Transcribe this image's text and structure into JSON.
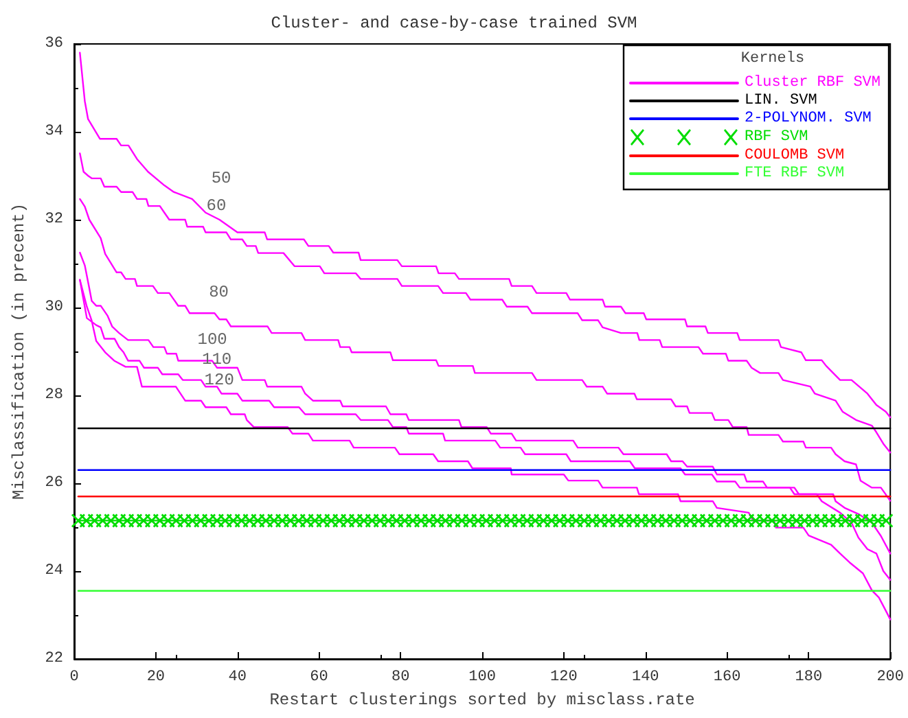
{
  "chart_data": {
    "type": "line",
    "title": "Cluster- and case-by-case trained SVM",
    "xlabel": "Restart clusterings sorted by misclass.rate",
    "ylabel": "Misclassification (in precent)",
    "legend_title": "Kernels",
    "legend": "top right",
    "grid": false,
    "marker": "none",
    "line_style": "solid",
    "xlim": [
      0,
      200
    ],
    "xticks": [
      0,
      20,
      40,
      60,
      80,
      100,
      120,
      140,
      160,
      180,
      200
    ],
    "ylim": [
      22,
      36
    ],
    "yticks": [
      22,
      24,
      26,
      28,
      30,
      32,
      34,
      36
    ],
    "annotations": [
      {
        "text": "50",
        "x": 28.9,
        "y": 32.47
      },
      {
        "text": "60",
        "x": 27.7,
        "y": 31.84
      },
      {
        "text": "80",
        "x": 28.3,
        "y": 29.87
      },
      {
        "text": "100",
        "x": 25.5,
        "y": 28.79
      },
      {
        "text": "110",
        "x": 26.6,
        "y": 28.35
      },
      {
        "text": "120",
        "x": 27.2,
        "y": 27.88
      }
    ],
    "series": [
      {
        "name": "Cluster RBF SVM",
        "color": "#ff00ff",
        "x": [
          1.4,
          2.6,
          3.4,
          6.3,
          10.4,
          11.5,
          13.3,
          15.4,
          18.1,
          22.1,
          24.4,
          28.9,
          32.2,
          35.6,
          40,
          46.7,
          47.3,
          56.3,
          57.4,
          62.4,
          63.5,
          69.7,
          70.2,
          79.2,
          80.3,
          88.7,
          89.3,
          93.3,
          94.3,
          106.6,
          107.2,
          112.2,
          113.3,
          120.6,
          121.5,
          129.5,
          130.1,
          134,
          135.1,
          139.6,
          140.2,
          149.7,
          150.2,
          154.7,
          155.3,
          162.5,
          163.1,
          172.6,
          173.2,
          178.2,
          179.3,
          183.2,
          184.3,
          187.7,
          190.5,
          194.4,
          196.6,
          198.9,
          200
        ],
        "values": [
          35.8,
          34.7,
          34.29,
          33.84,
          33.84,
          33.69,
          33.69,
          33.38,
          33.09,
          32.78,
          32.63,
          32.47,
          32.16,
          32.0,
          31.71,
          31.71,
          31.55,
          31.55,
          31.4,
          31.4,
          31.25,
          31.25,
          31.08,
          31.08,
          30.94,
          30.94,
          30.78,
          30.78,
          30.65,
          30.65,
          30.49,
          30.49,
          30.33,
          30.33,
          30.18,
          30.18,
          30.02,
          30.02,
          29.87,
          29.87,
          29.73,
          29.73,
          29.57,
          29.57,
          29.42,
          29.42,
          29.26,
          29.26,
          29.1,
          28.98,
          28.8,
          28.8,
          28.67,
          28.35,
          28.35,
          28.04,
          27.78,
          27.63,
          27.5
        ]
      },
      {
        "color": "#ff00ff",
        "x": [
          1.4,
          2.3,
          3.4,
          4.3,
          6.5,
          7.4,
          10.4,
          11.5,
          14.3,
          15.4,
          17.7,
          18.2,
          21,
          22.1,
          23.3,
          27.2,
          27.7,
          31.6,
          32.2,
          37.3,
          38.4,
          41.2,
          42.3,
          44.5,
          45.1,
          51.3,
          54,
          60.2,
          61.3,
          69,
          70.2,
          79.2,
          80.3,
          89.2,
          90.4,
          96,
          97.1,
          104.9,
          106,
          111.1,
          112.2,
          123.4,
          124.5,
          128.4,
          129.5,
          134,
          138,
          138.5,
          143.5,
          144.1,
          153,
          154.1,
          159.7,
          160.3,
          164.8,
          166,
          168.1,
          172.6,
          173.7,
          180.4,
          181.5,
          186.6,
          188.3,
          191.6,
          195.5,
          196.6,
          198.3,
          200
        ],
        "values": [
          33.51,
          33.09,
          33.0,
          32.94,
          32.94,
          32.75,
          32.75,
          32.63,
          32.63,
          32.47,
          32.47,
          32.31,
          32.31,
          32.16,
          32.0,
          32.0,
          31.84,
          31.84,
          31.71,
          31.71,
          31.55,
          31.55,
          31.4,
          31.4,
          31.24,
          31.24,
          30.94,
          30.94,
          30.78,
          30.78,
          30.65,
          30.65,
          30.49,
          30.49,
          30.33,
          30.33,
          30.18,
          30.18,
          30.02,
          30.02,
          29.87,
          29.87,
          29.71,
          29.71,
          29.55,
          29.42,
          29.42,
          29.26,
          29.26,
          29.1,
          29.1,
          28.95,
          28.95,
          28.79,
          28.79,
          28.63,
          28.51,
          28.51,
          28.35,
          28.2,
          28.04,
          27.88,
          27.63,
          27.44,
          27.31,
          27.16,
          26.9,
          26.7
        ]
      },
      {
        "color": "#ff00ff",
        "x": [
          1.4,
          2.6,
          3.7,
          6.5,
          7.6,
          10.4,
          11.5,
          12.6,
          14.9,
          15.4,
          19.3,
          20.5,
          23.3,
          25.5,
          27.2,
          28.3,
          34.4,
          35.6,
          37.3,
          38.4,
          47.4,
          48.4,
          55.7,
          56.6,
          64.7,
          65.2,
          67.5,
          68,
          77.5,
          78.1,
          88.7,
          89.3,
          97.7,
          98.2,
          112.2,
          113.3,
          124.5,
          125.6,
          129.5,
          130.6,
          137.3,
          137.9,
          146.3,
          147.4,
          150.2,
          150.8,
          156.3,
          157,
          160.3,
          161.4,
          164.8,
          165.3,
          172.6,
          173.7,
          178.7,
          179.3,
          185.5,
          186.6,
          188.8,
          191.6,
          192.7,
          195.5,
          197.7,
          200
        ],
        "values": [
          32.47,
          32.3,
          32.0,
          31.58,
          31.22,
          30.8,
          30.8,
          30.65,
          30.65,
          30.49,
          30.49,
          30.33,
          30.33,
          30.04,
          30.04,
          29.87,
          29.87,
          29.73,
          29.73,
          29.57,
          29.57,
          29.42,
          29.42,
          29.26,
          29.26,
          29.1,
          29.1,
          28.98,
          28.98,
          28.8,
          28.8,
          28.67,
          28.67,
          28.51,
          28.51,
          28.35,
          28.35,
          28.2,
          28.2,
          28.04,
          28.04,
          27.91,
          27.91,
          27.75,
          27.75,
          27.6,
          27.6,
          27.44,
          27.44,
          27.28,
          27.28,
          27.1,
          27.1,
          26.95,
          26.95,
          26.81,
          26.81,
          26.66,
          26.5,
          26.43,
          26.06,
          25.9,
          25.9,
          25.6
        ]
      },
      {
        "color": "#ff00ff",
        "x": [
          1.4,
          2.6,
          3.7,
          4.3,
          5.4,
          6.5,
          8.2,
          9.3,
          11,
          13.2,
          18.2,
          19.4,
          22.1,
          22.7,
          25,
          25.5,
          33.8,
          35,
          40,
          41.2,
          46.7,
          47.3,
          55.7,
          56.6,
          58.5,
          65.2,
          65.8,
          76.4,
          77.5,
          81.4,
          82,
          94.3,
          94.9,
          101.1,
          102.1,
          107.2,
          108.3,
          122.3,
          123.4,
          133.4,
          134.6,
          145.2,
          146.3,
          149.1,
          150.2,
          156.5,
          157.5,
          164.2,
          164.8,
          168.8,
          169.8,
          176.5,
          177.6,
          186,
          186.6,
          188.8,
          192.2,
          195.5,
          197.7,
          200
        ],
        "values": [
          31.25,
          30.96,
          30.44,
          30.15,
          30.04,
          30.04,
          29.81,
          29.57,
          29.42,
          29.26,
          29.26,
          29.1,
          29.1,
          28.95,
          28.95,
          28.79,
          28.79,
          28.63,
          28.63,
          28.35,
          28.35,
          28.2,
          28.2,
          28.04,
          27.88,
          27.88,
          27.75,
          27.75,
          27.57,
          27.57,
          27.44,
          27.44,
          27.28,
          27.28,
          27.13,
          27.13,
          26.97,
          26.97,
          26.81,
          26.81,
          26.66,
          26.66,
          26.5,
          26.5,
          26.38,
          26.38,
          26.2,
          26.2,
          26.04,
          26.04,
          25.9,
          25.9,
          25.75,
          25.75,
          25.59,
          25.44,
          25.3,
          25.1,
          24.8,
          24.4
        ]
      },
      {
        "color": "#ff00ff",
        "x": [
          1.4,
          3.1,
          5.4,
          6.5,
          7.4,
          9.9,
          11,
          12.1,
          13.2,
          16,
          17.1,
          20.5,
          21.6,
          25.5,
          26.6,
          31.1,
          32.2,
          35,
          36.1,
          40,
          41.2,
          47.8,
          49,
          55.1,
          56.6,
          69,
          70.2,
          76.9,
          78.1,
          81.4,
          82,
          90.4,
          90.9,
          103.2,
          104.4,
          109.4,
          110.5,
          120.6,
          121.7,
          136.2,
          137.4,
          148.6,
          149.7,
          156.3,
          157.5,
          162,
          163.1,
          175.4,
          176.5,
          182,
          183.2,
          187.7,
          190.5,
          192.2,
          194.4,
          196.6,
          198.3,
          200
        ],
        "values": [
          30.63,
          29.76,
          29.6,
          29.55,
          29.29,
          29.29,
          29.1,
          28.98,
          28.79,
          28.79,
          28.63,
          28.63,
          28.48,
          28.48,
          28.35,
          28.35,
          28.2,
          28.2,
          28.04,
          28.04,
          27.88,
          27.88,
          27.73,
          27.73,
          27.57,
          27.57,
          27.44,
          27.44,
          27.28,
          27.28,
          27.13,
          27.13,
          26.97,
          26.97,
          26.81,
          26.81,
          26.66,
          26.66,
          26.5,
          26.5,
          26.34,
          26.34,
          26.2,
          26.2,
          26.04,
          26.04,
          25.9,
          25.9,
          25.75,
          25.75,
          25.59,
          25.33,
          25.1,
          24.76,
          24.5,
          24.4,
          24.0,
          23.8
        ]
      },
      {
        "color": "#ff00ff",
        "x": [
          1.4,
          3.1,
          4.3,
          5.4,
          7.6,
          9.8,
          12.6,
          15.4,
          16.6,
          24.9,
          27.2,
          31.1,
          32.2,
          37.3,
          38.4,
          41.8,
          42.3,
          44,
          52.3,
          53.5,
          57.4,
          58.5,
          67.5,
          68.5,
          78.6,
          79.7,
          88,
          89.2,
          96.5,
          97.6,
          107,
          107.2,
          120,
          121.1,
          128.4,
          129.5,
          137.9,
          138.4,
          148,
          148.6,
          156.5,
          157.5,
          165.3,
          166.4,
          171.5,
          172,
          178.7,
          180,
          185.5,
          187.7,
          190,
          193.3,
          195.5,
          197.2,
          198.9,
          200
        ],
        "values": [
          30.63,
          30.02,
          29.7,
          29.24,
          28.98,
          28.79,
          28.65,
          28.65,
          28.2,
          28.2,
          27.88,
          27.88,
          27.73,
          27.73,
          27.57,
          27.57,
          27.44,
          27.28,
          27.28,
          27.13,
          27.13,
          26.97,
          26.97,
          26.81,
          26.81,
          26.66,
          26.66,
          26.5,
          26.5,
          26.34,
          26.34,
          26.2,
          26.2,
          26.06,
          26.06,
          25.9,
          25.9,
          25.75,
          25.75,
          25.59,
          25.59,
          25.44,
          25.33,
          25.15,
          25.15,
          24.99,
          24.99,
          24.81,
          24.6,
          24.4,
          24.2,
          23.95,
          23.56,
          23.4,
          23.1,
          22.9
        ]
      },
      {
        "name": "LIN. SVM",
        "color": "#000000",
        "x": [
          1,
          200
        ],
        "values": [
          27.25,
          27.25
        ]
      },
      {
        "name": "2-POLYNOM. SVM",
        "color": "#0000ff",
        "x": [
          1,
          200
        ],
        "values": [
          26.3,
          26.3
        ]
      },
      {
        "name": "RBF SVM",
        "color": "#00dd00",
        "marker": "cross",
        "x": [
          1,
          3,
          5,
          7,
          9,
          11,
          13,
          15,
          17,
          19,
          21,
          23,
          25,
          27,
          29,
          31,
          33,
          35,
          37,
          39,
          41,
          43,
          45,
          47,
          49,
          51,
          53,
          55,
          57,
          59,
          61,
          63,
          65,
          67,
          69,
          71,
          73,
          75,
          77,
          79,
          81,
          83,
          85,
          87,
          89,
          91,
          93,
          95,
          97,
          99,
          101,
          103,
          105,
          107,
          109,
          111,
          113,
          115,
          117,
          119,
          121,
          123,
          125,
          127,
          129,
          131,
          133,
          135,
          137,
          139,
          141,
          143,
          145,
          147,
          149,
          151,
          153,
          155,
          157,
          159,
          161,
          163,
          165,
          167,
          169,
          171,
          173,
          175,
          177,
          179,
          181,
          183,
          185,
          187,
          189,
          191,
          193,
          195,
          197,
          199
        ],
        "values": [
          25.15,
          25.15,
          25.15,
          25.15,
          25.15,
          25.15,
          25.15,
          25.15,
          25.15,
          25.15,
          25.15,
          25.15,
          25.15,
          25.15,
          25.15,
          25.15,
          25.15,
          25.15,
          25.15,
          25.15,
          25.15,
          25.15,
          25.15,
          25.15,
          25.15,
          25.15,
          25.15,
          25.15,
          25.15,
          25.15,
          25.15,
          25.15,
          25.15,
          25.15,
          25.15,
          25.15,
          25.15,
          25.15,
          25.15,
          25.15,
          25.15,
          25.15,
          25.15,
          25.15,
          25.15,
          25.15,
          25.15,
          25.15,
          25.15,
          25.15,
          25.15,
          25.15,
          25.15,
          25.15,
          25.15,
          25.15,
          25.15,
          25.15,
          25.15,
          25.15,
          25.15,
          25.15,
          25.15,
          25.15,
          25.15,
          25.15,
          25.15,
          25.15,
          25.15,
          25.15,
          25.15,
          25.15,
          25.15,
          25.15,
          25.15,
          25.15,
          25.15,
          25.15,
          25.15,
          25.15,
          25.15,
          25.15,
          25.15,
          25.15,
          25.15,
          25.15,
          25.15,
          25.15,
          25.15,
          25.15,
          25.15,
          25.15,
          25.15,
          25.15,
          25.15,
          25.15,
          25.15,
          25.15,
          25.15,
          25.15
        ]
      },
      {
        "name": "COULOMB SVM",
        "color": "#ff0000",
        "x": [
          1,
          200
        ],
        "values": [
          25.7,
          25.7
        ]
      },
      {
        "name": "FTE RBF SVM",
        "color": "#33ff33",
        "x": [
          1,
          200
        ],
        "values": [
          23.55,
          23.55
        ]
      }
    ]
  }
}
